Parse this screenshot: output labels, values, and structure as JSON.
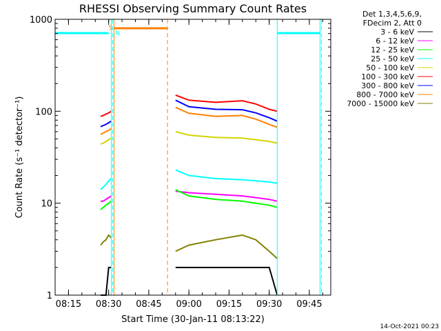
{
  "chart_data": {
    "type": "line",
    "title": "RHESSI Observing Summary Count Rates",
    "xlabel": "Start Time (30-Jan-11 08:13:22)",
    "ylabel": "Count Rate (s⁻¹ detector⁻¹)",
    "y_scale": "log",
    "xlim": [
      "08:10",
      "09:53"
    ],
    "ylim": [
      1,
      1000
    ],
    "x_ticks": [
      "08:15",
      "08:30",
      "08:45",
      "09:00",
      "09:15",
      "09:30",
      "09:45"
    ],
    "y_ticks": [
      {
        "value": 1,
        "label": "1"
      },
      {
        "value": 10,
        "label": "10"
      },
      {
        "value": 100,
        "label": "100"
      },
      {
        "value": 1000,
        "label": "1000"
      }
    ],
    "legend_header": [
      "Det 1,3,4,5,6,9,",
      "FDecim 2, Att 0"
    ],
    "legend_position": "right",
    "series": [
      {
        "name": "3 - 6 keV",
        "color": "#000000",
        "points": [
          [
            "08:27",
            1
          ],
          [
            "08:28",
            1
          ],
          [
            "08:29",
            1
          ],
          [
            "08:30",
            2
          ],
          [
            "08:31",
            2
          ],
          [
            "08:55",
            2
          ],
          [
            "09:00",
            2
          ],
          [
            "09:10",
            2
          ],
          [
            "09:20",
            2
          ],
          [
            "09:25",
            2
          ],
          [
            "09:30",
            2
          ],
          [
            "09:33",
            1
          ]
        ]
      },
      {
        "name": "6 - 12 keV",
        "color": "#ff00ff",
        "points": [
          [
            "08:27",
            10.5
          ],
          [
            "08:28",
            10.5
          ],
          [
            "08:29",
            11
          ],
          [
            "08:30",
            11.5
          ],
          [
            "08:31",
            12
          ],
          [
            "08:55",
            13.5
          ],
          [
            "09:00",
            13
          ],
          [
            "09:10",
            12.5
          ],
          [
            "09:20",
            12
          ],
          [
            "09:25",
            11.5
          ],
          [
            "09:30",
            11
          ],
          [
            "09:33",
            10.5
          ]
        ]
      },
      {
        "name": "12 - 25 keV",
        "color": "#00ff00",
        "points": [
          [
            "08:27",
            8.5
          ],
          [
            "08:28",
            9
          ],
          [
            "08:29",
            9.5
          ],
          [
            "08:30",
            10
          ],
          [
            "08:31",
            10.5
          ],
          [
            "08:55",
            14
          ],
          [
            "09:00",
            12
          ],
          [
            "09:10",
            11
          ],
          [
            "09:20",
            10.5
          ],
          [
            "09:25",
            10
          ],
          [
            "09:30",
            9.5
          ],
          [
            "09:33",
            9
          ]
        ]
      },
      {
        "name": "25 - 50 keV",
        "color": "#00ffff",
        "points": [
          [
            "08:27",
            14
          ],
          [
            "08:28",
            15
          ],
          [
            "08:29",
            16
          ],
          [
            "08:30",
            17.5
          ],
          [
            "08:31",
            18.5
          ],
          [
            "08:55",
            23
          ],
          [
            "09:00",
            20
          ],
          [
            "09:10",
            18.5
          ],
          [
            "09:20",
            18
          ],
          [
            "09:25",
            17.5
          ],
          [
            "09:30",
            17
          ],
          [
            "09:33",
            16.5
          ]
        ]
      },
      {
        "name": "50 - 100 keV",
        "color": "#d4d400",
        "points": [
          [
            "08:27",
            44
          ],
          [
            "08:28",
            45
          ],
          [
            "08:29",
            47
          ],
          [
            "08:30",
            49
          ],
          [
            "08:31",
            51
          ],
          [
            "08:55",
            60
          ],
          [
            "09:00",
            55
          ],
          [
            "09:10",
            52
          ],
          [
            "09:20",
            51
          ],
          [
            "09:25",
            49
          ],
          [
            "09:30",
            47
          ],
          [
            "09:33",
            45
          ]
        ]
      },
      {
        "name": "100 - 300 keV",
        "color": "#ff0000",
        "points": [
          [
            "08:27",
            88
          ],
          [
            "08:28",
            90
          ],
          [
            "08:29",
            93
          ],
          [
            "08:30",
            96
          ],
          [
            "08:31",
            100
          ],
          [
            "08:55",
            150
          ],
          [
            "09:00",
            132
          ],
          [
            "09:10",
            125
          ],
          [
            "09:20",
            130
          ],
          [
            "09:25",
            120
          ],
          [
            "09:30",
            105
          ],
          [
            "09:33",
            100
          ]
        ]
      },
      {
        "name": "300 - 800 keV",
        "color": "#0000ff",
        "points": [
          [
            "08:27",
            68
          ],
          [
            "08:28",
            70
          ],
          [
            "08:29",
            72
          ],
          [
            "08:30",
            75
          ],
          [
            "08:31",
            78
          ],
          [
            "08:55",
            132
          ],
          [
            "09:00",
            112
          ],
          [
            "09:10",
            105
          ],
          [
            "09:20",
            104
          ],
          [
            "09:25",
            96
          ],
          [
            "09:30",
            85
          ],
          [
            "09:33",
            78
          ]
        ]
      },
      {
        "name": "800 - 7000 keV",
        "color": "#ff8000",
        "points": [
          [
            "08:27",
            56
          ],
          [
            "08:28",
            58
          ],
          [
            "08:29",
            60
          ],
          [
            "08:30",
            62
          ],
          [
            "08:31",
            65
          ],
          [
            "08:55",
            110
          ],
          [
            "09:00",
            95
          ],
          [
            "09:10",
            88
          ],
          [
            "09:20",
            90
          ],
          [
            "09:25",
            82
          ],
          [
            "09:30",
            72
          ],
          [
            "09:33",
            67
          ]
        ]
      },
      {
        "name": "7000 - 15000 keV",
        "color": "#808000",
        "points": [
          [
            "08:27",
            3.5
          ],
          [
            "08:28",
            3.8
          ],
          [
            "08:29",
            4
          ],
          [
            "08:30",
            4.5
          ],
          [
            "08:31",
            4.2
          ],
          [
            "08:55",
            3
          ],
          [
            "09:00",
            3.5
          ],
          [
            "09:10",
            4
          ],
          [
            "09:20",
            4.5
          ],
          [
            "09:25",
            4
          ],
          [
            "09:30",
            3
          ],
          [
            "09:33",
            2.5
          ]
        ]
      }
    ],
    "markers": {
      "cyan_solid": [
        "08:10",
        "08:31",
        "09:33",
        "09:49"
      ],
      "cyan_dashed": [
        "08:31",
        "09:49"
      ],
      "orange_solid": [
        "08:32"
      ],
      "orange_dashed": [
        "08:52"
      ],
      "cyan_bars": [
        [
          "08:10",
          "08:30"
        ],
        [
          "09:33",
          "09:49"
        ]
      ],
      "orange_bar": [
        "08:32",
        "08:52"
      ],
      "labels": [
        {
          "text": "S",
          "time": "08:31",
          "color": "#ff8000"
        },
        {
          "text": "N",
          "time": "08:32",
          "color": "#00ffff"
        }
      ]
    },
    "footer_timestamp": "14-Oct-2021 00:23"
  }
}
